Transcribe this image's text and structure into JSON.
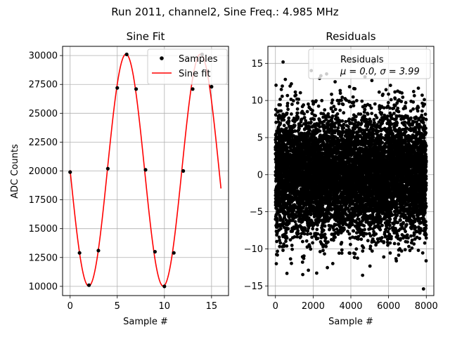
{
  "figure": {
    "suptitle": "Run 2011, channel2, Sine Freq.: 4.985 MHz"
  },
  "colors": {
    "fit_line": "#ff0000",
    "points": "#000000",
    "grid": "#b0b0b0",
    "frame": "#000000"
  },
  "chart_data": [
    {
      "type": "line",
      "title": "Sine Fit",
      "xlabel": "Sample #",
      "ylabel": "ADC Counts",
      "xlim": [
        -0.8,
        16.8
      ],
      "ylim": [
        9200,
        30800
      ],
      "xticks": [
        0,
        5,
        10,
        15
      ],
      "yticks": [
        10000,
        12500,
        15000,
        17500,
        20000,
        22500,
        25000,
        27500,
        30000
      ],
      "ytick_labels": [
        "10000",
        "12500",
        "15000",
        "17500",
        "20000",
        "22500",
        "25000",
        "27500",
        "30000"
      ],
      "grid": true,
      "legend_position": "upper right",
      "series": [
        {
          "name": "Samples",
          "kind": "scatter",
          "x": [
            0,
            1,
            2,
            3,
            4,
            5,
            6,
            7,
            8,
            9,
            10,
            11,
            12,
            13,
            14,
            15
          ],
          "y": [
            19900,
            12900,
            10100,
            13100,
            20200,
            27200,
            30100,
            27100,
            20100,
            13000,
            10000,
            12900,
            20000,
            27100,
            30100,
            27300
          ]
        },
        {
          "name": "Sine fit",
          "kind": "line",
          "x": [
            0,
            0.5,
            1,
            1.5,
            2,
            2.5,
            3,
            3.5,
            4,
            4.5,
            5,
            5.5,
            6,
            6.5,
            7,
            7.5,
            8,
            8.5,
            9,
            9.5,
            10,
            10.5,
            11,
            11.5,
            12,
            12.5,
            13,
            13.5,
            14,
            14.5,
            15,
            15.5,
            16
          ],
          "y": [
            19985,
            15950,
            12771,
            10688,
            10080,
            11108,
            13513,
            16839,
            20534,
            24071,
            26868,
            29429,
            30100,
            29393,
            27394,
            24509,
            21074,
            17412,
            14092,
            11571,
            10179,
            10034,
            11182,
            13484,
            16655,
            20350,
            23854,
            26992,
            29138,
            30067,
            29578,
            27679,
            21050
          ]
        }
      ]
    },
    {
      "type": "scatter",
      "title": "Residuals",
      "xlabel": "Sample #",
      "ylim": [
        -16.3,
        17.3
      ],
      "xlim": [
        -400,
        8400
      ],
      "xticks": [
        0,
        2000,
        4000,
        6000,
        8000
      ],
      "yticks": [
        -15,
        -10,
        -5,
        0,
        5,
        10,
        15
      ],
      "grid": true,
      "legend_position": "upper right",
      "n_points": 8000,
      "mean": 0.0,
      "sigma": 3.99,
      "series": [
        {
          "name": "Residuals",
          "legend_line2": "μ = 0.0, σ = 3.99"
        }
      ]
    }
  ]
}
